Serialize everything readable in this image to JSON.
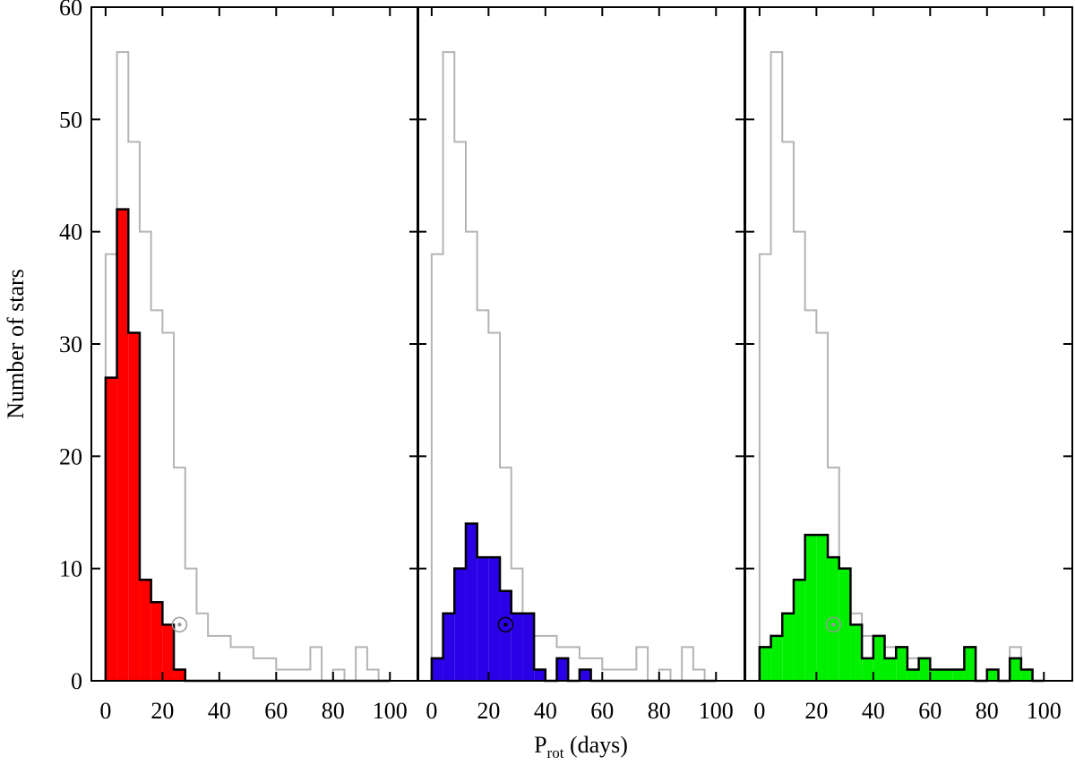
{
  "chart_data": [
    {
      "type": "histogram",
      "ylabel": "Number of stars",
      "xlim": [
        -5,
        110
      ],
      "ylim": [
        0,
        60
      ],
      "xticks": [
        0,
        20,
        40,
        60,
        80,
        100
      ],
      "yticks": [
        0,
        10,
        20,
        30,
        40,
        50,
        60
      ],
      "show_yticklabels": true,
      "bins": [
        0,
        4,
        8,
        12,
        16,
        20,
        24,
        28,
        32,
        36,
        40,
        44,
        48,
        52,
        56,
        60,
        64,
        68,
        72,
        76,
        80,
        84,
        88,
        92,
        96,
        100
      ],
      "series": [
        {
          "color": "#b4b4b4",
          "fill": null,
          "values": [
            38,
            56,
            48,
            40,
            33,
            31,
            19,
            10,
            6,
            4,
            4,
            3,
            3,
            2,
            2,
            1,
            1,
            1,
            3,
            0,
            1,
            0,
            3,
            1,
            0
          ]
        },
        {
          "color": "#000000",
          "fill": "#ff0000",
          "values": [
            27,
            42,
            31,
            9,
            7,
            5,
            1,
            0,
            0,
            0,
            0,
            0,
            0,
            0,
            0,
            0,
            0,
            0,
            0,
            0,
            0,
            0,
            0,
            0,
            0
          ]
        }
      ],
      "sun_marker": {
        "x": 26,
        "y": 5,
        "color": "#999999"
      }
    },
    {
      "type": "histogram",
      "xlabel": [
        "P",
        "rot",
        " (days)"
      ],
      "xlim": [
        -5,
        110
      ],
      "ylim": [
        0,
        60
      ],
      "xticks": [
        0,
        20,
        40,
        60,
        80,
        100
      ],
      "yticks": [
        0,
        10,
        20,
        30,
        40,
        50,
        60
      ],
      "show_yticklabels": false,
      "bins": [
        0,
        4,
        8,
        12,
        16,
        20,
        24,
        28,
        32,
        36,
        40,
        44,
        48,
        52,
        56,
        60,
        64,
        68,
        72,
        76,
        80,
        84,
        88,
        92,
        96,
        100
      ],
      "series": [
        {
          "color": "#b4b4b4",
          "fill": null,
          "values": [
            38,
            56,
            48,
            40,
            33,
            31,
            19,
            10,
            6,
            4,
            4,
            3,
            3,
            2,
            2,
            1,
            1,
            1,
            3,
            0,
            1,
            0,
            3,
            1,
            0
          ]
        },
        {
          "color": "#000000",
          "fill": "#2a00e6",
          "values": [
            2,
            6,
            10,
            14,
            11,
            11,
            8,
            6,
            6,
            1,
            0,
            2,
            0,
            1,
            0,
            0,
            0,
            0,
            0,
            0,
            0,
            0,
            0,
            0,
            0
          ]
        }
      ],
      "sun_marker": {
        "x": 26,
        "y": 5,
        "color": "#000000"
      }
    },
    {
      "type": "histogram",
      "xlim": [
        -5,
        110
      ],
      "ylim": [
        0,
        60
      ],
      "xticks": [
        0,
        20,
        40,
        60,
        80,
        100
      ],
      "yticks": [
        0,
        10,
        20,
        30,
        40,
        50,
        60
      ],
      "show_yticklabels": false,
      "bins": [
        0,
        4,
        8,
        12,
        16,
        20,
        24,
        28,
        32,
        36,
        40,
        44,
        48,
        52,
        56,
        60,
        64,
        68,
        72,
        76,
        80,
        84,
        88,
        92,
        96,
        100
      ],
      "series": [
        {
          "color": "#b4b4b4",
          "fill": null,
          "values": [
            38,
            56,
            48,
            40,
            33,
            31,
            19,
            10,
            6,
            4,
            4,
            3,
            3,
            2,
            2,
            1,
            1,
            1,
            3,
            0,
            1,
            0,
            3,
            1,
            0
          ]
        },
        {
          "color": "#000000",
          "fill": "#00f000",
          "values": [
            3,
            4,
            6,
            9,
            13,
            13,
            11,
            10,
            5,
            2,
            4,
            2,
            3,
            1,
            2,
            1,
            1,
            1,
            3,
            0,
            1,
            0,
            2,
            1,
            0
          ]
        }
      ],
      "sun_marker": {
        "x": 26,
        "y": 5,
        "color": "#999999"
      }
    }
  ]
}
